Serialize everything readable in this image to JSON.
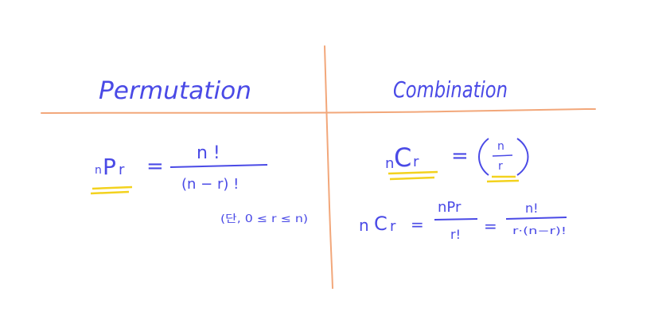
{
  "colors": {
    "ink": "#4a4ae6",
    "grid": "#f2a77a",
    "highlight": "#f3d21e"
  },
  "headers": {
    "left": "Permutation",
    "right": "Combination"
  },
  "permutation": {
    "lhs_prefix": "n",
    "lhs_main": "P",
    "lhs_suffix": "r",
    "equals": "=",
    "numerator": "n !",
    "denominator": "(n − r) !",
    "condition": "(단, 0 ≤ r ≤ n)"
  },
  "combination": {
    "lhs_prefix": "n",
    "lhs_main": "C",
    "lhs_suffix": "r",
    "equals": "=",
    "binom_top": "n",
    "binom_bottom": "r",
    "formula2_lhs_prefix": "n",
    "formula2_lhs_main": "C",
    "formula2_lhs_suffix": "r",
    "equals2": "=",
    "frac1_numerator": "nPr",
    "frac1_denominator": "r!",
    "equals3": "=",
    "frac2_numerator": "n!",
    "frac2_denominator": "r·(n−r)!"
  }
}
